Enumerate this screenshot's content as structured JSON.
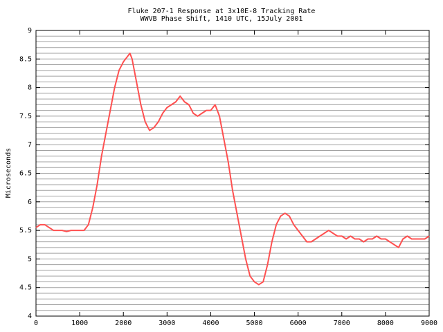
{
  "chart_data": {
    "type": "line",
    "title": "Fluke 207-1 Response at 3x10E-8 Tracking Rate",
    "subtitle": "WWVB Phase Shift, 1410 UTC, 15July 2001",
    "ylabel": "Microseconds",
    "x": [
      0,
      100,
      200,
      300,
      400,
      500,
      600,
      700,
      800,
      900,
      1000,
      1100,
      1200,
      1300,
      1400,
      1500,
      1600,
      1700,
      1800,
      1900,
      2000,
      2100,
      2150,
      2200,
      2300,
      2400,
      2500,
      2600,
      2700,
      2800,
      2900,
      3000,
      3100,
      3200,
      3300,
      3400,
      3500,
      3600,
      3700,
      3800,
      3900,
      4000,
      4100,
      4200,
      4300,
      4400,
      4500,
      4600,
      4700,
      4800,
      4900,
      5000,
      5100,
      5200,
      5300,
      5400,
      5500,
      5600,
      5700,
      5800,
      5900,
      6000,
      6100,
      6200,
      6300,
      6400,
      6500,
      6600,
      6700,
      6800,
      6900,
      7000,
      7100,
      7200,
      7300,
      7400,
      7500,
      7600,
      7700,
      7800,
      7900,
      8000,
      8100,
      8200,
      8300,
      8400,
      8500,
      8600,
      8700,
      8800,
      8900,
      9000
    ],
    "series": [
      {
        "color": "#ff5050",
        "values": [
          5.55,
          5.6,
          5.6,
          5.55,
          5.5,
          5.5,
          5.5,
          5.48,
          5.5,
          5.5,
          5.5,
          5.5,
          5.6,
          5.9,
          6.3,
          6.8,
          7.2,
          7.6,
          8.0,
          8.3,
          8.45,
          8.55,
          8.6,
          8.5,
          8.1,
          7.7,
          7.4,
          7.25,
          7.3,
          7.4,
          7.55,
          7.65,
          7.7,
          7.75,
          7.85,
          7.75,
          7.7,
          7.55,
          7.5,
          7.55,
          7.6,
          7.6,
          7.7,
          7.5,
          7.1,
          6.7,
          6.2,
          5.8,
          5.4,
          5.0,
          4.7,
          4.6,
          4.55,
          4.6,
          4.9,
          5.3,
          5.6,
          5.75,
          5.8,
          5.75,
          5.6,
          5.5,
          5.4,
          5.3,
          5.3,
          5.35,
          5.4,
          5.45,
          5.5,
          5.45,
          5.4,
          5.4,
          5.35,
          5.4,
          5.35,
          5.35,
          5.3,
          5.35,
          5.35,
          5.4,
          5.35,
          5.35,
          5.3,
          5.25,
          5.2,
          5.35,
          5.4,
          5.35,
          5.35,
          5.35,
          5.35,
          5.4
        ]
      }
    ],
    "xlim": [
      0,
      9000
    ],
    "xticks": [
      0,
      1000,
      2000,
      3000,
      4000,
      5000,
      6000,
      7000,
      8000,
      9000
    ],
    "ylim": [
      4,
      9
    ],
    "yticks": [
      4,
      4.5,
      5,
      5.5,
      6,
      6.5,
      7,
      7.5,
      8,
      8.5,
      9
    ],
    "y_minor_ticks": [
      4.1,
      4.2,
      4.3,
      4.4,
      4.6,
      4.7,
      4.8,
      4.9,
      5.1,
      5.2,
      5.3,
      5.4,
      5.6,
      5.7,
      5.8,
      5.9,
      6.1,
      6.2,
      6.3,
      6.4,
      6.6,
      6.7,
      6.8,
      6.9,
      7.1,
      7.2,
      7.3,
      7.4,
      7.6,
      7.7,
      7.8,
      7.9,
      8.1,
      8.2,
      8.3,
      8.4,
      8.6,
      8.7,
      8.8,
      8.9
    ],
    "grid": true
  }
}
